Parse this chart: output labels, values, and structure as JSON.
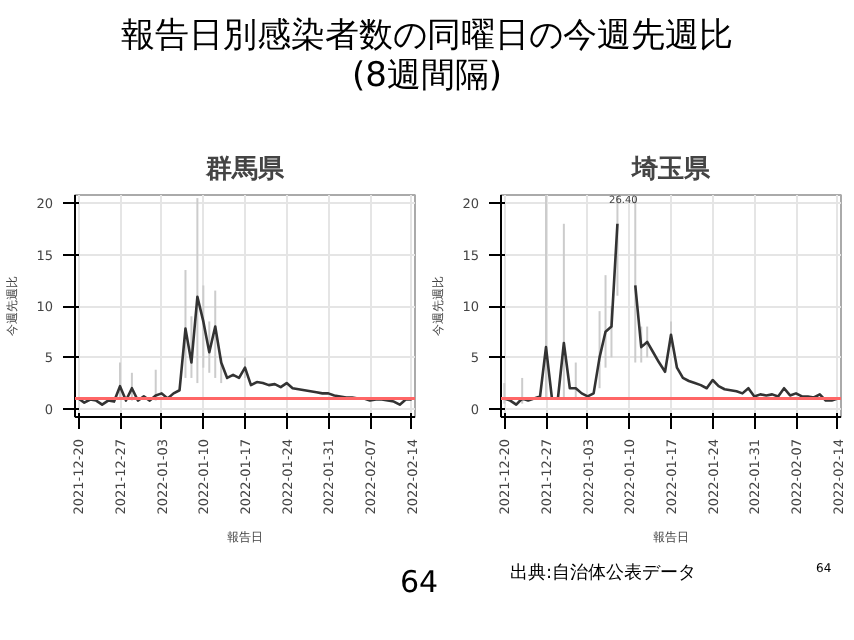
{
  "chart_data": [
    {
      "type": "line",
      "title": "群馬県",
      "xlabel": "報告日",
      "ylabel": "今週先週比",
      "annotations": [
        "報告日別感染者数の同曜日の今週先週比\n(8週間隔)"
      ],
      "x": [
        "2021-12-20",
        "2021-12-21",
        "2021-12-22",
        "2021-12-23",
        "2021-12-24",
        "2021-12-25",
        "2021-12-26",
        "2021-12-27",
        "2021-12-28",
        "2021-12-29",
        "2021-12-30",
        "2021-12-31",
        "2022-01-01",
        "2022-01-02",
        "2022-01-03",
        "2022-01-04",
        "2022-01-05",
        "2022-01-06",
        "2022-01-07",
        "2022-01-08",
        "2022-01-09",
        "2022-01-10",
        "2022-01-11",
        "2022-01-12",
        "2022-01-13",
        "2022-01-14",
        "2022-01-15",
        "2022-01-16",
        "2022-01-17",
        "2022-01-18",
        "2022-01-19",
        "2022-01-20",
        "2022-01-21",
        "2022-01-22",
        "2022-01-23",
        "2022-01-24",
        "2022-01-25",
        "2022-01-26",
        "2022-01-27",
        "2022-01-28",
        "2022-01-29",
        "2022-01-30",
        "2022-01-31",
        "2022-02-01",
        "2022-02-02",
        "2022-02-03",
        "2022-02-04",
        "2022-02-05",
        "2022-02-06",
        "2022-02-07",
        "2022-02-08",
        "2022-02-09",
        "2022-02-10",
        "2022-02-11",
        "2022-02-12",
        "2022-02-13",
        "2022-02-14"
      ],
      "series": [
        {
          "color": "#333333",
          "values": [
            1.0,
            0.6,
            0.9,
            0.8,
            0.4,
            0.8,
            0.7,
            2.2,
            0.8,
            2.0,
            0.8,
            1.2,
            0.8,
            1.3,
            1.5,
            1.0,
            1.5,
            1.8,
            7.8,
            4.5,
            10.9,
            8.5,
            5.5,
            8.0,
            4.5,
            3.0,
            3.3,
            3.0,
            4.0,
            2.3,
            2.6,
            2.5,
            2.3,
            2.4,
            2.1,
            2.5,
            2.0,
            1.9,
            1.8,
            1.7,
            1.6,
            1.5,
            1.5,
            1.3,
            1.2,
            1.1,
            1.1,
            1.0,
            1.0,
            0.8,
            0.9,
            0.9,
            0.8,
            0.7,
            0.4,
            0.9,
            0.9
          ],
          "errors": [
            null,
            null,
            null,
            null,
            null,
            null,
            null,
            [
              1.0,
              4.5
            ],
            null,
            [
              0.8,
              3.5
            ],
            null,
            null,
            null,
            [
              0.8,
              3.8
            ],
            null,
            null,
            null,
            null,
            [
              3.0,
              13.5
            ],
            [
              3.0,
              9.0
            ],
            [
              2.5,
              20.5
            ],
            [
              4.0,
              12.0
            ],
            [
              3.5,
              8.5
            ],
            [
              3.0,
              11.5
            ],
            [
              2.5,
              5.0
            ],
            null,
            null,
            null,
            [
              3.0,
              5.0
            ],
            null,
            null,
            null,
            null,
            null,
            null,
            null,
            null,
            null,
            null,
            null,
            null,
            null,
            null,
            null,
            null,
            null,
            null,
            null,
            null,
            null,
            null,
            null,
            null,
            null,
            null,
            null,
            null
          ]
        }
      ],
      "xlim": [
        "2021-12-20",
        "2022-02-14"
      ],
      "ylim": [
        -0.8,
        20.8
      ],
      "xticks": [
        "2021-12-20",
        "2021-12-27",
        "2022-01-03",
        "2022-01-10",
        "2022-01-17",
        "2022-01-24",
        "2022-01-31",
        "2022-02-07",
        "2022-02-14"
      ],
      "yticks": [
        0,
        5,
        10,
        15,
        20
      ],
      "grid": true,
      "marker": "none",
      "line_style": "solid",
      "ref_lines": [
        {
          "axis": "y",
          "value": 1,
          "color": "#ff6666"
        }
      ]
    },
    {
      "type": "line",
      "title": "埼玉県",
      "xlabel": "報告日",
      "ylabel": "今週先週比",
      "annotations": [
        {
          "text": "26.40",
          "x": "2022-01-09",
          "y": 20.8
        },
        "64",
        "出典:自治体公表データ",
        "64"
      ],
      "x": [
        "2021-12-20",
        "2021-12-21",
        "2021-12-22",
        "2021-12-23",
        "2021-12-24",
        "2021-12-25",
        "2021-12-26",
        "2021-12-27",
        "2021-12-28",
        "2021-12-29",
        "2021-12-30",
        "2021-12-31",
        "2022-01-01",
        "2022-01-02",
        "2022-01-03",
        "2022-01-04",
        "2022-01-05",
        "2022-01-06",
        "2022-01-07",
        "2022-01-08",
        "2022-01-09",
        "2022-01-10",
        "2022-01-11",
        "2022-01-12",
        "2022-01-13",
        "2022-01-14",
        "2022-01-15",
        "2022-01-16",
        "2022-01-17",
        "2022-01-18",
        "2022-01-19",
        "2022-01-20",
        "2022-01-21",
        "2022-01-22",
        "2022-01-23",
        "2022-01-24",
        "2022-01-25",
        "2022-01-26",
        "2022-01-27",
        "2022-01-28",
        "2022-01-29",
        "2022-01-30",
        "2022-01-31",
        "2022-02-01",
        "2022-02-02",
        "2022-02-03",
        "2022-02-04",
        "2022-02-05",
        "2022-02-06",
        "2022-02-07",
        "2022-02-08",
        "2022-02-09",
        "2022-02-10",
        "2022-02-11",
        "2022-02-12",
        "2022-02-13",
        "2022-02-14"
      ],
      "series": [
        {
          "color": "#333333",
          "values": [
            1.0,
            0.8,
            0.4,
            1.0,
            0.8,
            1.0,
            1.2,
            6.0,
            1.0,
            1.0,
            6.4,
            2.0,
            2.0,
            1.5,
            1.2,
            1.5,
            5.0,
            7.5,
            8.0,
            18.0,
            null,
            null,
            12.0,
            6.0,
            6.5,
            5.5,
            4.5,
            3.6,
            7.2,
            4.0,
            3.0,
            2.7,
            2.5,
            2.3,
            2.0,
            2.8,
            2.2,
            1.9,
            1.8,
            1.7,
            1.5,
            2.0,
            1.2,
            1.4,
            1.3,
            1.4,
            1.2,
            2.0,
            1.3,
            1.5,
            1.2,
            1.2,
            1.1,
            1.4,
            0.8,
            0.8,
            1.0
          ],
          "errors": [
            [
              0.5,
              2.5
            ],
            null,
            null,
            [
              0.5,
              3.0
            ],
            null,
            null,
            null,
            [
              1.0,
              20.8
            ],
            null,
            null,
            [
              1.0,
              18.0
            ],
            null,
            [
              1.0,
              4.5
            ],
            null,
            null,
            null,
            [
              2.0,
              9.5
            ],
            [
              4.0,
              13.0
            ],
            [
              5.0,
              10.0
            ],
            [
              11.0,
              20.8
            ],
            null,
            null,
            [
              4.5,
              20.8
            ],
            [
              4.5,
              8.0
            ],
            [
              5.0,
              8.0
            ],
            null,
            null,
            null,
            [
              6.0,
              8.5
            ],
            null,
            null,
            null,
            null,
            null,
            null,
            null,
            null,
            null,
            null,
            null,
            null,
            null,
            null,
            null,
            null,
            null,
            null,
            null,
            null,
            null,
            null,
            null,
            null,
            null,
            null,
            null,
            null
          ]
        }
      ],
      "xlim": [
        "2021-12-20",
        "2022-02-14"
      ],
      "ylim": [
        -0.8,
        20.8
      ],
      "xticks": [
        "2021-12-20",
        "2021-12-27",
        "2022-01-03",
        "2022-01-10",
        "2022-01-17",
        "2022-01-24",
        "2022-01-31",
        "2022-02-07",
        "2022-02-14"
      ],
      "yticks": [
        0,
        5,
        10,
        15,
        20
      ],
      "grid": true,
      "marker": "none",
      "line_style": "solid",
      "ref_lines": [
        {
          "axis": "y",
          "value": 1,
          "color": "#ff6666"
        }
      ]
    }
  ]
}
